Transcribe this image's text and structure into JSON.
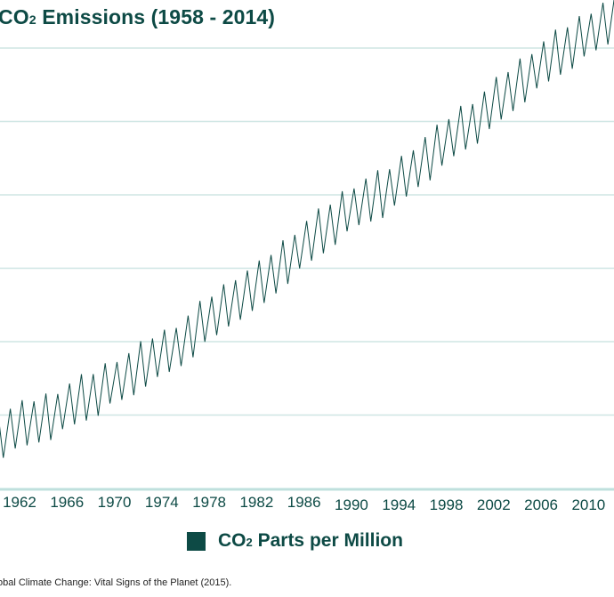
{
  "chart_data": {
    "type": "line",
    "title_main": "CO",
    "title_sub": "2",
    "title_rest": " Emissions (1958 - 2014)",
    "title": "CO₂ Emissions (1958 - 2014)",
    "xlabel": "",
    "ylabel": "",
    "x_range": [
      1960.5,
      2012.3
    ],
    "y_range": [
      310,
      372
    ],
    "grid": true,
    "gridlines_y": [
      320,
      330,
      340,
      350,
      360,
      370
    ],
    "x_ticks": [
      1962,
      1966,
      1970,
      1974,
      1978,
      1982,
      1986,
      1990,
      1994,
      1998,
      2002,
      2006,
      2010
    ],
    "x_tick_labels": [
      "1962",
      "1966",
      "1970",
      "1974",
      "1978",
      "1982",
      "1986",
      "1990",
      "1994",
      "1998",
      "2002",
      "2006",
      "2010"
    ],
    "legend": {
      "position": "bottom-center",
      "entries": [
        {
          "name": "CO₂ Parts per Million",
          "color": "#0d4a45"
        }
      ]
    },
    "series": [
      {
        "name": "CO₂ Parts per Million",
        "color": "#0d4a45",
        "seasonal_amplitude_ppm": 3.0,
        "annual_mean": {
          "x": [
            1960,
            1961,
            1962,
            1963,
            1964,
            1965,
            1966,
            1967,
            1968,
            1969,
            1970,
            1971,
            1972,
            1973,
            1974,
            1975,
            1976,
            1977,
            1978,
            1979,
            1980,
            1981,
            1982,
            1983,
            1984,
            1985,
            1986,
            1987,
            1988,
            1989,
            1990,
            1991,
            1992,
            1993,
            1994,
            1995,
            1996,
            1997,
            1998,
            1999,
            2000,
            2001,
            2002,
            2003,
            2004,
            2005,
            2006,
            2007,
            2008,
            2009,
            2010,
            2011,
            2012
          ],
          "y": [
            317.0,
            317.6,
            318.3,
            318.9,
            319.5,
            320.0,
            321.0,
            321.8,
            322.5,
            323.4,
            324.5,
            325.1,
            326.0,
            327.5,
            328.0,
            329.0,
            330.0,
            331.5,
            333.0,
            334.0,
            335.5,
            336.5,
            337.0,
            338.5,
            340.0,
            341.5,
            343.0,
            344.2,
            345.4,
            346.8,
            348.0,
            349.0,
            349.6,
            350.3,
            351.5,
            353.0,
            354.5,
            355.5,
            357.0,
            358.5,
            359.5,
            360.5,
            362.0,
            363.5,
            364.8,
            366.2,
            367.5,
            368.6,
            369.7,
            370.7,
            371.8,
            372.8,
            373.8
          ]
        }
      }
    ]
  },
  "legend": {
    "label_main": "CO",
    "label_sub": "2",
    "label_rest": " Parts per Million"
  },
  "source": {
    "text": "obal Climate Change: Vital Signs of the Planet (2015)."
  },
  "colors": {
    "accent": "#0d4a45",
    "grid": "#cfe6e4",
    "axis": "#bfe0dd"
  }
}
